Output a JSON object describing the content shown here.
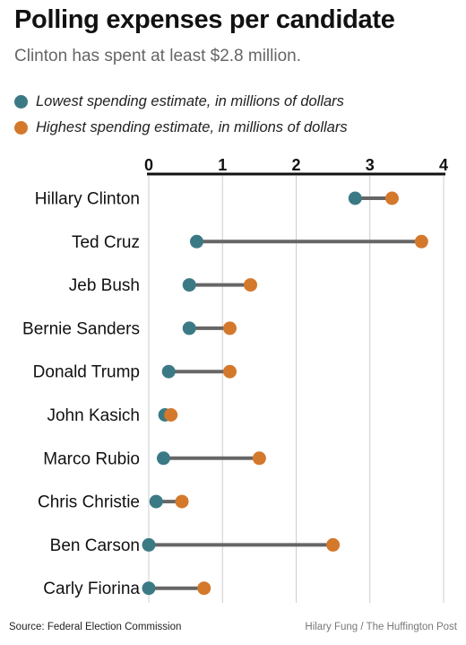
{
  "header": {
    "title": "Polling expenses per candidate",
    "subtitle": "Clinton has spent at least $2.8 million."
  },
  "colors": {
    "low": "#3b7a85",
    "high": "#d4782c",
    "connector": "#666666",
    "grid": "#cccccc"
  },
  "chart_data": {
    "type": "dumbbell",
    "title": "Polling expenses per candidate",
    "subtitle": "Clinton has spent at least $2.8 million.",
    "xlim": [
      0,
      4
    ],
    "xticks": [
      "0",
      "1",
      "2",
      "3",
      "4"
    ],
    "grid": true,
    "legend_position": "top-left",
    "legend": [
      "Lowest spending estimate, in millions of dollars",
      "Highest spending estimate, in millions of dollars"
    ],
    "categories": [
      "Hillary Clinton",
      "Ted Cruz",
      "Jeb Bush",
      "Bernie Sanders",
      "Donald Trump",
      "John Kasich",
      "Marco Rubio",
      "Chris Christie",
      "Ben Carson",
      "Carly Fiorina"
    ],
    "series": [
      {
        "name": "Lowest spending estimate, in millions of dollars",
        "values": [
          2.8,
          0.65,
          0.55,
          0.55,
          0.27,
          0.22,
          0.2,
          0.1,
          0.0,
          0.0
        ]
      },
      {
        "name": "Highest spending estimate, in millions of dollars",
        "values": [
          3.3,
          3.7,
          1.38,
          1.1,
          1.1,
          0.3,
          1.5,
          0.45,
          2.5,
          0.75
        ]
      }
    ]
  },
  "footer": {
    "source": "Source: Federal Election Commission",
    "credit": "Hilary Fung / The Huffington Post"
  }
}
